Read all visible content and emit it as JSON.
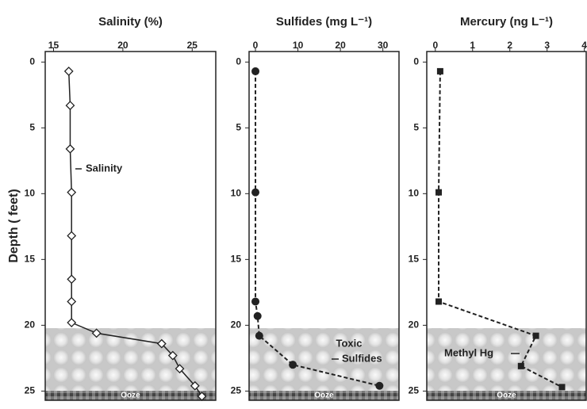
{
  "chart_data": [
    {
      "type": "line",
      "title": "Salinity  (%)",
      "ylabel": "Depth ( feet)",
      "xlim": [
        14.4,
        26.7
      ],
      "xticks": [
        15,
        20,
        25
      ],
      "ylim": [
        -0.8,
        25.7
      ],
      "yticks": [
        0,
        5,
        10,
        15,
        20,
        25
      ],
      "y_inverted": true,
      "annotation": [
        "Salinity"
      ],
      "sediment_label": "Ooze",
      "series": [
        {
          "color": "#222222",
          "marker": "diamond",
          "dashed": false,
          "x": [
            16.1,
            16.2,
            16.2,
            16.3,
            16.3,
            16.3,
            16.3,
            16.3,
            18.1,
            22.8,
            23.6,
            24.1,
            25.2,
            25.7
          ],
          "y": [
            0.7,
            3.3,
            6.6,
            9.9,
            13.2,
            16.5,
            18.2,
            19.8,
            20.6,
            21.4,
            22.3,
            23.3,
            24.6,
            25.4
          ]
        }
      ]
    },
    {
      "type": "line",
      "title": "Sulfides (mg L⁻¹)",
      "xlim": [
        -1.5,
        33.8
      ],
      "xticks": [
        0,
        10,
        20,
        30
      ],
      "ylim": [
        -0.8,
        25.7
      ],
      "yticks": [
        0,
        5,
        10,
        15,
        20,
        25
      ],
      "y_inverted": true,
      "annotation": [
        "Toxic",
        "Sulfides"
      ],
      "sediment_label": "Ooze",
      "series": [
        {
          "color": "#222222",
          "marker": "circle",
          "dashed": true,
          "x": [
            0,
            0,
            0,
            0.5,
            0.9,
            8.8,
            29.2
          ],
          "y": [
            0.7,
            9.9,
            18.2,
            19.3,
            20.8,
            23.0,
            24.6
          ]
        }
      ]
    },
    {
      "type": "line",
      "title": "Mercury (ng L⁻¹)",
      "xlim": [
        -0.23,
        4.05
      ],
      "xticks": [
        0,
        1,
        2,
        3,
        4
      ],
      "ylim": [
        -0.8,
        25.7
      ],
      "yticks": [
        0,
        5,
        10,
        15,
        20,
        25
      ],
      "y_inverted": true,
      "annotation": [
        "Methyl Hg"
      ],
      "sediment_label": "Ooze",
      "series": [
        {
          "color": "#222222",
          "marker": "square",
          "dashed": true,
          "x": [
            0.13,
            0.09,
            0.09,
            2.7,
            2.3,
            3.4
          ],
          "y": [
            0.7,
            9.9,
            18.2,
            20.8,
            23.1,
            24.7
          ]
        }
      ]
    }
  ]
}
